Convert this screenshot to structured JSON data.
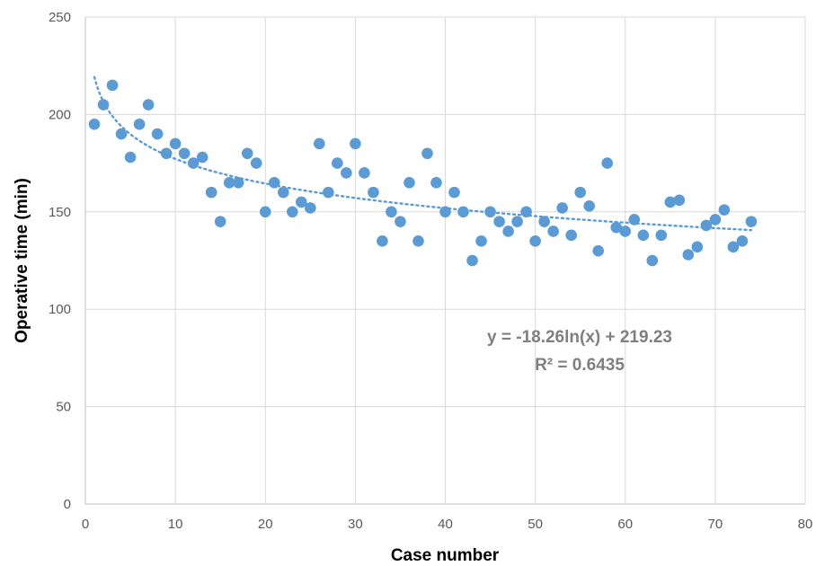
{
  "chart_data": {
    "type": "scatter",
    "title": "",
    "xlabel": "Case number",
    "ylabel": "Operative time (min)",
    "xlim": [
      0,
      80
    ],
    "ylim": [
      0,
      250
    ],
    "x_ticks": [
      0,
      10,
      20,
      30,
      40,
      50,
      60,
      70,
      80
    ],
    "y_ticks": [
      0,
      50,
      100,
      150,
      200,
      250
    ],
    "grid": true,
    "legend": "none",
    "colors": {
      "points": "#5b9bd5",
      "trendline": "#5b9bd5",
      "grid": "#d9d9d9",
      "annotation": "#7f7f7f"
    },
    "series": [
      {
        "x": [
          1,
          2,
          3,
          4,
          5,
          6,
          7,
          8,
          9,
          10,
          11,
          12,
          13,
          14,
          15,
          16,
          17,
          18,
          19,
          20,
          21,
          22,
          23,
          24,
          25,
          26,
          27,
          28,
          29,
          30,
          31,
          32,
          33,
          34,
          35,
          36,
          37,
          38,
          39,
          40,
          41,
          42,
          43,
          44,
          45,
          46,
          47,
          48,
          49,
          50,
          51,
          52,
          53,
          54,
          55,
          56,
          57,
          58,
          59,
          60,
          61,
          62,
          63,
          64,
          65,
          66,
          67,
          68,
          69,
          70,
          71,
          72,
          73,
          74
        ],
        "y": [
          195,
          205,
          215,
          190,
          178,
          195,
          205,
          190,
          180,
          185,
          180,
          175,
          178,
          160,
          145,
          165,
          165,
          180,
          175,
          150,
          165,
          160,
          150,
          155,
          152,
          185,
          160,
          175,
          170,
          185,
          170,
          160,
          135,
          150,
          145,
          165,
          135,
          180,
          165,
          150,
          160,
          150,
          125,
          135,
          150,
          145,
          140,
          145,
          150,
          135,
          145,
          140,
          152,
          138,
          160,
          153,
          130,
          175,
          142,
          140,
          146,
          138,
          125,
          138,
          155,
          156,
          128,
          132,
          143,
          146,
          151,
          132,
          135,
          145
        ]
      }
    ],
    "trendline": {
      "type": "logarithmic",
      "a": -18.26,
      "b": 219.23,
      "x_range": [
        1,
        74
      ],
      "equation": "y = -18.26ln(x) + 219.23",
      "r_squared": "R² = 0.6435"
    }
  }
}
